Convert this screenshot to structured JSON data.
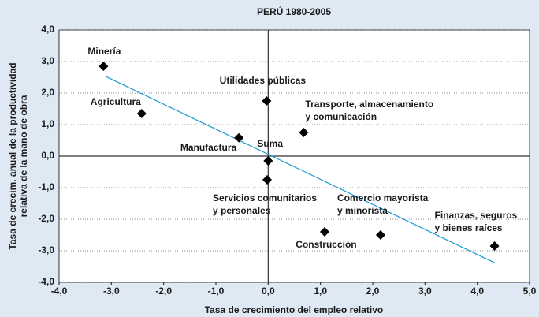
{
  "chart_data": {
    "type": "scatter",
    "title": "PERÚ 1980-2005",
    "x_label": "Tasa de crecimiento del empleo relativo",
    "y_label": [
      "Tasa de crecim. anual de la productividad",
      "relativa de la mano de obra"
    ],
    "labels": [
      [
        "Minería"
      ],
      [
        "Agricultura"
      ],
      [
        "Utilidades públicas"
      ],
      [
        "Transporte, almacenamiento",
        "y comunicación"
      ],
      [
        "Manufactura"
      ],
      [
        "Suma"
      ],
      [
        "Servicios comunitarios",
        "y personales"
      ],
      [
        "Construcción"
      ],
      [
        "Comercio mayorista",
        "y minorista"
      ],
      [
        "Finanzas, seguros",
        "y bienes raíces"
      ]
    ],
    "x": [
      -3.15,
      -2.42,
      -0.03,
      0.68,
      -0.56,
      0.0,
      -0.02,
      1.08,
      2.15,
      4.33
    ],
    "y": [
      2.85,
      1.35,
      1.75,
      0.75,
      0.58,
      -0.15,
      -0.75,
      -2.4,
      -2.5,
      -2.85
    ],
    "color": "#000000",
    "trendline": {
      "x": [
        -3.1,
        4.33
      ],
      "y": [
        2.52,
        -3.38
      ],
      "color": "#1a9ad6"
    },
    "xlim": [
      -4,
      5
    ],
    "ylim": [
      -4,
      4
    ],
    "xticks": [
      {
        "value": -4,
        "label": "-4,0"
      },
      {
        "value": -3,
        "label": "-3,0"
      },
      {
        "value": -2,
        "label": "-2,0"
      },
      {
        "value": -1,
        "label": "-1,0"
      },
      {
        "value": 0,
        "label": "0,0"
      },
      {
        "value": 1,
        "label": "1,0"
      },
      {
        "value": 2,
        "label": "2,0"
      },
      {
        "value": 3,
        "label": "3,0"
      },
      {
        "value": 4,
        "label": "4,0"
      },
      {
        "value": 5,
        "label": "5,0"
      }
    ],
    "yticks": [
      {
        "value": -4,
        "label": "-4,0"
      },
      {
        "value": -3,
        "label": "-3,0"
      },
      {
        "value": -2,
        "label": "-2,0"
      },
      {
        "value": -1,
        "label": "-1,0"
      },
      {
        "value": 0,
        "label": "0,0"
      },
      {
        "value": 1,
        "label": "1,0"
      },
      {
        "value": 2,
        "label": "2,0"
      },
      {
        "value": 3,
        "label": "3,0"
      },
      {
        "value": 4,
        "label": "4,0"
      }
    ],
    "grid": true
  }
}
